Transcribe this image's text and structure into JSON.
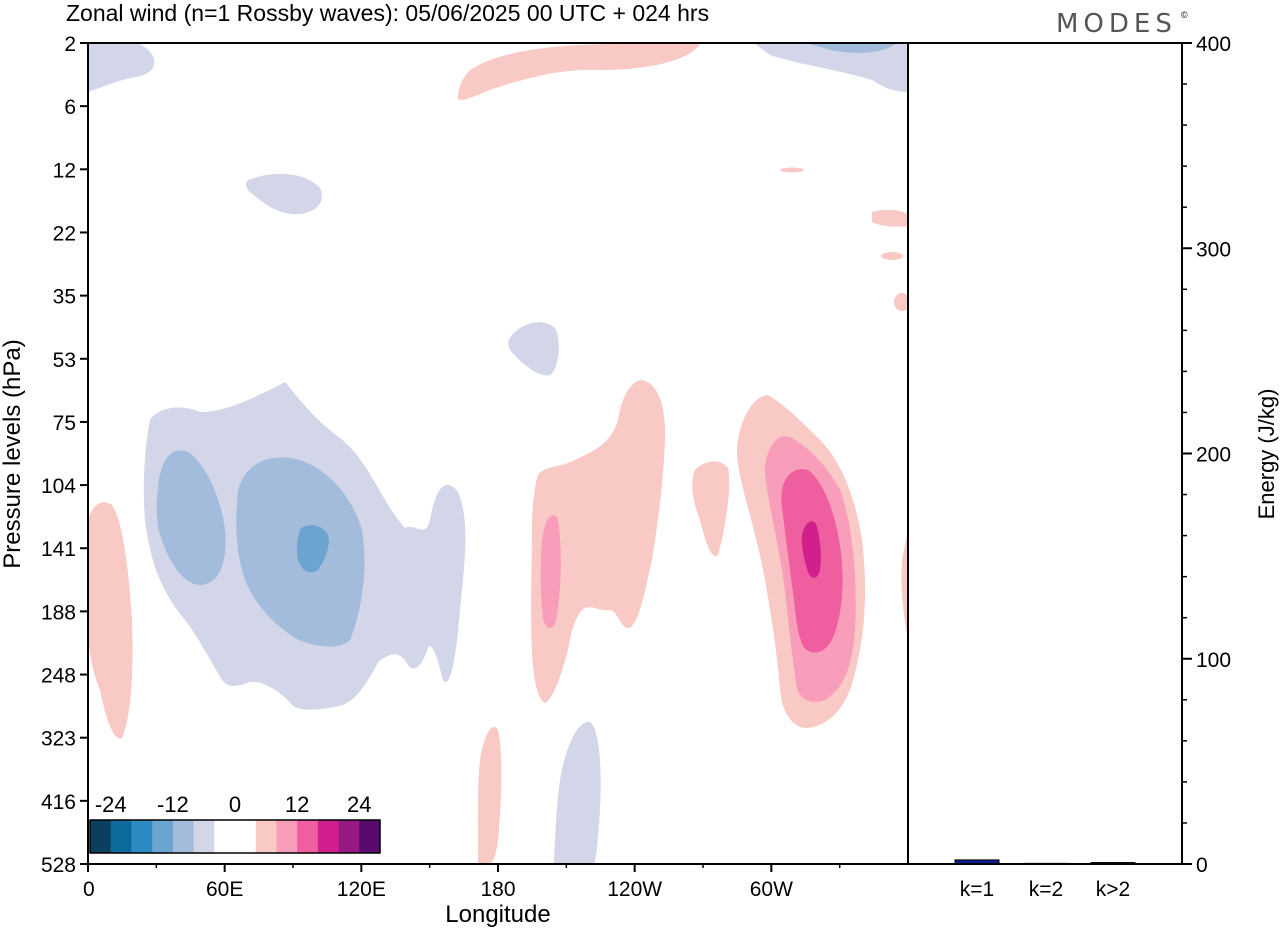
{
  "header": {
    "title": "Zonal wind (n=1 Rossby waves):  05/06/2025  00 UTC  + 024 hrs",
    "brand": "MODES",
    "brand_mark": "©"
  },
  "chart_data": [
    {
      "type": "heatmap",
      "title": "Zonal wind (n=1 Rossby waves):  05/06/2025  00 UTC  + 024 hrs",
      "xlabel": "Longitude",
      "ylabel": "Pressure levels (hPa)",
      "x_ticks": [
        "0",
        "60E",
        "120E",
        "180",
        "120W",
        "60W"
      ],
      "x_tick_degrees": [
        0,
        60,
        120,
        180,
        240,
        300
      ],
      "xlim": [
        0,
        360
      ],
      "y_ticks": [
        "2",
        "6",
        "12",
        "22",
        "35",
        "53",
        "75",
        "104",
        "141",
        "188",
        "248",
        "323",
        "416",
        "528"
      ],
      "y_tick_values": [
        2,
        6,
        12,
        22,
        35,
        53,
        75,
        104,
        141,
        188,
        248,
        323,
        416,
        528
      ],
      "yscale": "model levels (top 2 hPa, bottom 528 hPa)",
      "colorbar": {
        "labels": [
          "-24",
          "-12",
          "0",
          "12",
          "24"
        ],
        "label_values": [
          -24,
          -12,
          0,
          12,
          24
        ],
        "colors": [
          "#0c3f5e",
          "#0e6a9c",
          "#2d8bc4",
          "#6aa4cf",
          "#a3bcdc",
          "#d3d6e8",
          "#ffffff",
          "#ffffff",
          "#f9c9c6",
          "#f89ebb",
          "#ef5f9f",
          "#d11f8d",
          "#961a82",
          "#580a6e"
        ]
      },
      "features": [
        {
          "sign": "negative",
          "level_max": -12,
          "lon_range": [
            10,
            140
          ],
          "p_range": [
            75,
            323
          ],
          "core_lon": 98,
          "core_p": 141
        },
        {
          "sign": "positive",
          "level_max": 20,
          "lon_range": [
            285,
            325
          ],
          "p_range": [
            75,
            323
          ],
          "core_lon": 314,
          "core_p": 141
        },
        {
          "sign": "positive",
          "level_max": 8,
          "lon_range": [
            195,
            262
          ],
          "p_range": [
            53,
            248
          ],
          "core_lon": 203,
          "core_p": 141
        }
      ]
    },
    {
      "type": "bar",
      "categories": [
        "k=1",
        "k=2",
        "k>2"
      ],
      "values": [
        2.0,
        0.3,
        0.7
      ],
      "ylabel": "Energy (J/kg)",
      "ylim": [
        0,
        400
      ],
      "y_ticks": [
        "0",
        "100",
        "200",
        "300",
        "400"
      ],
      "y_tick_values": [
        0,
        100,
        200,
        300,
        400
      ],
      "bar_colors": [
        "#0b1f8f",
        "#0b1f8f",
        "#0b1f8f"
      ]
    }
  ]
}
